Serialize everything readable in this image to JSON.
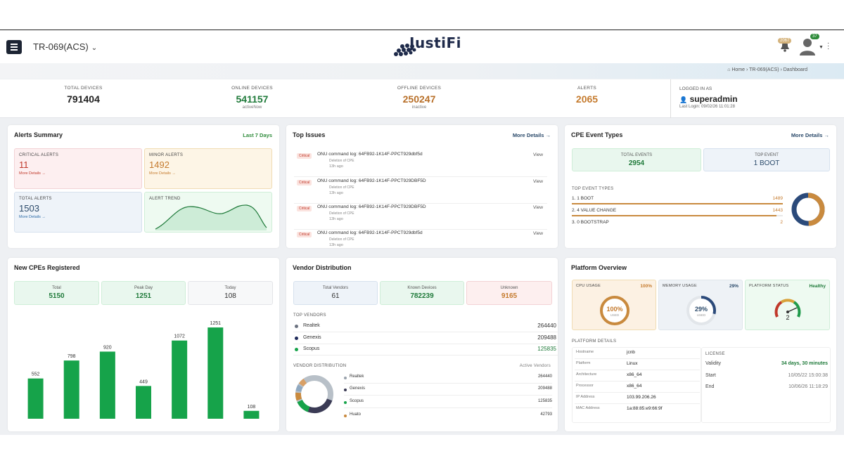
{
  "header": {
    "acs_label": "TR-069(ACS)",
    "logo_text": "JustiFi",
    "notif_count": "2067",
    "user_count": "37"
  },
  "breadcrumb": "⌂ Home › TR-069(ACS) › Dashboard",
  "stats": {
    "total_devices": {
      "label": "TOTAL DEVICES",
      "value": "791404"
    },
    "online_devices": {
      "label": "ONLINE DEVICES",
      "value": "541157",
      "sub": "activeNow"
    },
    "offline_devices": {
      "label": "OFFLINE DEVICES",
      "value": "250247",
      "sub": "inactive"
    },
    "alerts": {
      "label": "ALERTS",
      "value": "2065"
    },
    "login": {
      "label": "LOGGED IN AS",
      "user": "superadmin",
      "last": "Last Login: 09/02/26 11:01:28"
    }
  },
  "alerts_summary": {
    "title": "Alerts Summary",
    "link": "Last 7 Days",
    "critical": {
      "label": "CRITICAL ALERTS",
      "value": "11",
      "more": "More Details →"
    },
    "minor": {
      "label": "MINOR ALERTS",
      "value": "1492",
      "more": "More Details →"
    },
    "total": {
      "label": "TOTAL ALERTS",
      "value": "1503",
      "more": "More Details →"
    },
    "trend": {
      "label": "ALERT TREND"
    }
  },
  "top_issues": {
    "title": "Top Issues",
    "link": "More Details →",
    "items": [
      {
        "badge": "Critical",
        "cmd": "ONU command log: 64FB92-1K14F-PPCT929dbf5d",
        "del": "Deletion of CPE",
        "ago": "13h ago",
        "action": "View"
      },
      {
        "badge": "Critical",
        "cmd": "ONU command log: 64FB92-1K14F-PPCT929DBF5D",
        "del": "Deletion of CPE",
        "ago": "13h ago",
        "action": "View"
      },
      {
        "badge": "Critical",
        "cmd": "ONU command log: 64FB92-1K14F-PPCT929DBF5D",
        "del": "Deletion of CPE",
        "ago": "13h ago",
        "action": "View"
      },
      {
        "badge": "Critical",
        "cmd": "ONU command log: 64FB92-1K14F-PPCT929dbf5d",
        "del": "Deletion of CPE",
        "ago": "13h ago",
        "action": "View"
      }
    ]
  },
  "cpe_events": {
    "title": "CPE Event Types",
    "link": "More Details →",
    "total_label": "TOTAL EVENTS",
    "total_value": "2954",
    "top_label": "TOP EVENT",
    "top_value": "1 BOOT",
    "section_label": "TOP EVENT TYPES",
    "rows": [
      {
        "name": "1. 1 BOOT",
        "count": "1489",
        "fraction": 1.0
      },
      {
        "name": "2. 4 VALUE CHANGE",
        "count": "1443",
        "fraction": 0.97
      },
      {
        "name": "3. 0 BOOTSTRAP",
        "count": "2",
        "fraction": 0.0
      }
    ]
  },
  "new_cpes": {
    "title": "New CPEs Registered",
    "total_label": "Total",
    "total_value": "5150",
    "peak_label": "Peak Day",
    "peak_value": "1251",
    "today_label": "Today",
    "today_value": "108"
  },
  "vendor": {
    "title": "Vendor Distribution",
    "total_label": "Total Vendors",
    "total_value": "61",
    "known_label": "Known Devices",
    "known_value": "782239",
    "unknown_label": "Unknown",
    "unknown_value": "9165",
    "top_label": "TOP VENDORS",
    "top": [
      {
        "name": "Realtek",
        "count": "264440",
        "color": "#6b7280"
      },
      {
        "name": "Genexis",
        "count": "209488",
        "color": "#1f2a5a"
      },
      {
        "name": "Scopus",
        "count": "125835",
        "color": "#16a34a"
      }
    ],
    "dist_label": "VENDOR DISTRIBUTION",
    "dist_right": "Active Vendors",
    "dist": [
      {
        "name": "Realtek",
        "count": "264440",
        "color": "#9aa3ad"
      },
      {
        "name": "Genexis",
        "count": "209488",
        "color": "#3b3b55"
      },
      {
        "name": "Scopus",
        "count": "125835",
        "color": "#16a34a"
      },
      {
        "name": "Huato",
        "count": "42793",
        "color": "#c98a3e"
      }
    ]
  },
  "platform": {
    "title": "Platform Overview",
    "cpu": {
      "label": "CPU USAGE",
      "pct": "100%",
      "center": "100%",
      "sub": "USED",
      "value": 1.0
    },
    "mem": {
      "label": "MEMORY USAGE",
      "pct": "29%",
      "center": "29%",
      "sub": "USED",
      "value": 0.29
    },
    "status": {
      "label": "PLATFORM STATUS",
      "value": "Healthy",
      "gauge": "2"
    },
    "details_label": "PLATFORM DETAILS",
    "details": [
      {
        "k": "Hostname",
        "v": "jcnb"
      },
      {
        "k": "Platform",
        "v": "Linux"
      },
      {
        "k": "Architecture",
        "v": "x86_64"
      },
      {
        "k": "Processor",
        "v": "x86_64"
      },
      {
        "k": "IP Address",
        "v": "103.99.206.26"
      },
      {
        "k": "MAC Address",
        "v": "1a:88:85:e9:66:9f"
      }
    ],
    "license_label": "LICENSE",
    "validity_k": "Validity",
    "validity_v": "34 days, 30 minutes",
    "start_k": "Start",
    "start_v": "10/05/22 15:00:38",
    "end_k": "End",
    "end_v": "10/06/26 11:18:29"
  },
  "chart_data": {
    "type": "bar",
    "categories": [
      "",
      "",
      "",
      "",
      "",
      "",
      ""
    ],
    "values": [
      552,
      798,
      920,
      449,
      1072,
      1251,
      108
    ],
    "ylim": [
      0,
      1300
    ],
    "color": "#16a34a",
    "grid": false
  }
}
